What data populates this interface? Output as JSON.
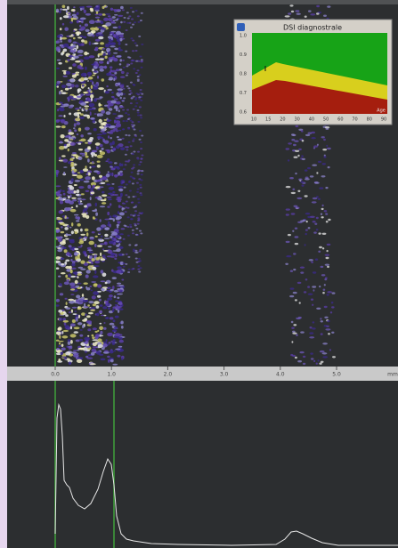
{
  "inset": {
    "title": "DSI diagnostrale",
    "y_labels": [
      "1.0",
      "0.9",
      "0.8",
      "0.7",
      "0.6"
    ],
    "x_labels": [
      "10",
      "15",
      "20",
      "30",
      "40",
      "50",
      "60",
      "70",
      "80",
      "90"
    ],
    "corner_label": "Age"
  },
  "scale": {
    "labels": [
      "0.0",
      "1.0",
      "2.0",
      "3.0",
      "4.0",
      "5.0"
    ],
    "unit": "mm"
  }
}
